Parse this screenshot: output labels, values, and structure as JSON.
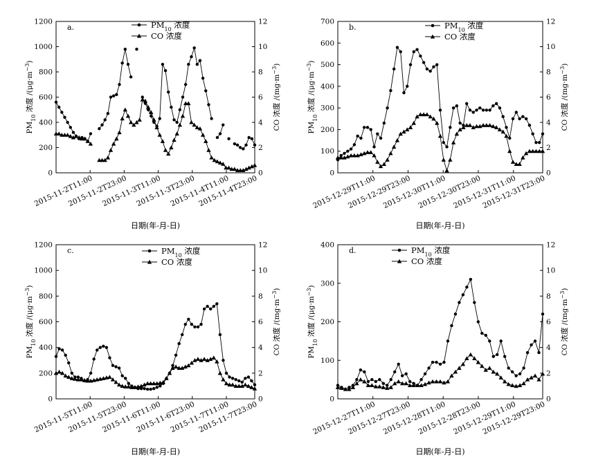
{
  "chart_data": [
    {
      "type": "line",
      "panel": "a.",
      "xlabel": "日期(年-月-日)",
      "ylabel_left": "PM10 浓度 /(μg·m−3)",
      "ylabel_right": "CO 浓度 /(mg·m−3)",
      "ylim_left": [
        0,
        1200
      ],
      "yticks_left": [
        0,
        200,
        400,
        600,
        800,
        1000,
        1200
      ],
      "ylim_right": [
        0,
        12
      ],
      "yticks_right": [
        0,
        2,
        4,
        6,
        8,
        10,
        12
      ],
      "xlim": [
        0,
        70
      ],
      "xtick_positions": [
        12,
        24,
        36,
        48,
        60,
        72
      ],
      "xtick_labels": [
        "2015-11-2T11:00",
        "2015-11-2T23:00",
        "2015-11-3T11:00",
        "2015-11-3T23:00",
        "2015-11-4T11:00",
        "2015-11-4T23:00"
      ],
      "legend": [
        "PM10 浓度",
        "CO 浓度"
      ],
      "series": [
        {
          "name": "PM10 浓度",
          "marker": "circle",
          "axis": "left",
          "values": [
            560,
            520,
            480,
            440,
            400,
            360,
            320,
            290,
            270,
            280,
            270,
            250,
            310,
            null,
            null,
            350,
            380,
            420,
            470,
            600,
            610,
            620,
            700,
            870,
            980,
            860,
            760,
            null,
            980,
            null,
            600,
            550,
            500,
            450,
            400,
            370,
            430,
            860,
            810,
            640,
            520,
            420,
            400,
            500,
            600,
            700,
            860,
            920,
            990,
            860,
            890,
            750,
            650,
            540,
            430,
            null,
            280,
            310,
            380,
            null,
            270,
            null,
            230,
            220,
            200,
            190,
            220,
            280,
            270,
            220
          ]
        },
        {
          "name": "CO 浓度",
          "marker": "triangle",
          "axis": "left",
          "values": [
            310,
            310,
            300,
            300,
            300,
            290,
            280,
            290,
            280,
            270,
            270,
            250,
            230,
            null,
            null,
            100,
            100,
            100,
            120,
            180,
            230,
            270,
            320,
            430,
            500,
            450,
            400,
            380,
            400,
            420,
            580,
            570,
            520,
            480,
            420,
            360,
            300,
            250,
            180,
            150,
            200,
            260,
            310,
            380,
            450,
            550,
            550,
            400,
            380,
            360,
            350,
            300,
            250,
            180,
            120,
            100,
            90,
            80,
            70,
            40,
            40,
            30,
            30,
            20,
            20,
            20,
            30,
            40,
            50,
            60
          ]
        }
      ]
    },
    {
      "type": "line",
      "panel": "b.",
      "xlabel": "日期(年-月-日)",
      "ylabel_left": "PM10 浓度 /(μg·m−3)",
      "ylabel_right": "CO 浓度 /(mg·m−3)",
      "ylim_left": [
        0,
        700
      ],
      "yticks_left": [
        0,
        100,
        200,
        300,
        400,
        500,
        600,
        700
      ],
      "ylim_right": [
        0,
        12
      ],
      "yticks_right": [
        0,
        2,
        4,
        6,
        8,
        10,
        12
      ],
      "xlim": [
        0,
        70
      ],
      "xtick_positions": [
        12,
        24,
        36,
        48,
        60,
        72
      ],
      "xtick_labels": [
        "2015-12-29T11:00",
        "2015-12-29T23:00",
        "2015-12-30T11:00",
        "2015-12-30T23:00",
        "2015-12-31T11:00",
        "2015-12-31T23:00"
      ],
      "legend": [
        "PM10 浓度",
        "CO 浓度"
      ],
      "series": [
        {
          "name": "PM10 浓度",
          "marker": "circle",
          "axis": "left",
          "values": [
            60,
            80,
            90,
            100,
            110,
            130,
            170,
            160,
            210,
            210,
            200,
            120,
            180,
            160,
            230,
            300,
            380,
            480,
            580,
            560,
            370,
            400,
            500,
            560,
            570,
            540,
            510,
            480,
            470,
            490,
            500,
            290,
            140,
            120,
            210,
            300,
            310,
            230,
            220,
            320,
            290,
            280,
            290,
            300,
            290,
            290,
            290,
            310,
            320,
            300,
            260,
            210,
            160,
            250,
            280,
            250,
            260,
            250,
            220,
            180,
            140,
            140,
            180
          ]
        },
        {
          "name": "CO 浓度",
          "marker": "triangle",
          "axis": "left",
          "values": [
            70,
            70,
            70,
            75,
            80,
            80,
            80,
            85,
            90,
            95,
            95,
            80,
            50,
            30,
            40,
            60,
            90,
            120,
            150,
            180,
            190,
            200,
            210,
            230,
            260,
            270,
            270,
            270,
            260,
            250,
            230,
            170,
            60,
            10,
            60,
            140,
            180,
            200,
            210,
            220,
            220,
            210,
            215,
            215,
            220,
            220,
            220,
            215,
            210,
            200,
            190,
            170,
            100,
            50,
            40,
            40,
            70,
            90,
            100,
            100,
            100,
            100,
            100
          ]
        }
      ]
    },
    {
      "type": "line",
      "panel": "c.",
      "xlabel": "日期(年-月-日)",
      "ylabel_left": "PM10 浓度 /(μg·m−3)",
      "ylabel_right": "CO 浓度 /(mg·m−3)",
      "ylim_left": [
        0,
        1200
      ],
      "yticks_left": [
        0,
        200,
        400,
        600,
        800,
        1000,
        1200
      ],
      "ylim_right": [
        0,
        12
      ],
      "yticks_right": [
        0,
        2,
        4,
        6,
        8,
        10,
        12
      ],
      "xlim": [
        0,
        70
      ],
      "xtick_positions": [
        12,
        24,
        36,
        48,
        60,
        72
      ],
      "xtick_labels": [
        "2015-11-5T11:00",
        "2015-11-5T23:00",
        "2015-11-6T11:00",
        "2015-11-6T23:00",
        "2015-11-7T11:00",
        "2015-11-7T23:00"
      ],
      "legend": [
        "PM10 浓度",
        "CO 浓度"
      ],
      "series": [
        {
          "name": "PM10 浓度",
          "marker": "circle",
          "axis": "left",
          "values": [
            330,
            390,
            380,
            340,
            280,
            200,
            170,
            170,
            160,
            140,
            150,
            200,
            310,
            380,
            400,
            410,
            400,
            320,
            260,
            250,
            240,
            180,
            160,
            120,
            100,
            90,
            80,
            80,
            80,
            75,
            75,
            80,
            90,
            100,
            120,
            160,
            200,
            260,
            340,
            430,
            500,
            580,
            620,
            580,
            560,
            560,
            580,
            700,
            720,
            700,
            720,
            740,
            500,
            300,
            200,
            170,
            160,
            150,
            140,
            130,
            160,
            170,
            140,
            110
          ]
        },
        {
          "name": "CO 浓度",
          "marker": "triangle",
          "axis": "left",
          "values": [
            200,
            210,
            200,
            180,
            170,
            160,
            155,
            150,
            150,
            145,
            140,
            140,
            145,
            150,
            155,
            160,
            165,
            170,
            150,
            130,
            110,
            100,
            95,
            95,
            90,
            90,
            95,
            100,
            110,
            120,
            120,
            120,
            120,
            125,
            130,
            160,
            200,
            240,
            250,
            240,
            240,
            250,
            260,
            280,
            300,
            310,
            300,
            310,
            300,
            310,
            320,
            290,
            200,
            150,
            120,
            110,
            110,
            100,
            100,
            100,
            110,
            100,
            90,
            80
          ]
        }
      ]
    },
    {
      "type": "line",
      "panel": "d.",
      "xlabel": "日期(年-月-日)",
      "ylabel_left": "PM10 浓度 /(μg·m−3)",
      "ylabel_right": "CO 浓度 /(mg·m−3)",
      "ylim_left": [
        0,
        400
      ],
      "yticks_left": [
        0,
        100,
        200,
        300,
        400
      ],
      "ylim_right": [
        0,
        12
      ],
      "yticks_right": [
        0,
        2,
        4,
        6,
        8,
        10,
        12
      ],
      "xlim": [
        0,
        70
      ],
      "xtick_positions": [
        12,
        24,
        36,
        48,
        60,
        72
      ],
      "xtick_labels": [
        "2015-12-27T11:00",
        "2015-12-27T23:00",
        "2015-12-28T11:00",
        "2015-12-28T23:00",
        "2015-12-29T11:00",
        "2015-12-29T23:00"
      ],
      "legend": [
        "PM10 浓度",
        "CO 浓度"
      ],
      "series": [
        {
          "name": "PM10 浓度",
          "marker": "circle",
          "axis": "left",
          "values": [
            35,
            30,
            25,
            30,
            35,
            50,
            75,
            70,
            45,
            50,
            45,
            50,
            40,
            35,
            50,
            70,
            90,
            60,
            65,
            45,
            40,
            35,
            50,
            65,
            80,
            95,
            95,
            90,
            95,
            150,
            190,
            220,
            250,
            270,
            290,
            310,
            250,
            200,
            170,
            165,
            150,
            110,
            115,
            150,
            110,
            80,
            70,
            60,
            65,
            80,
            120,
            140,
            150,
            120,
            220
          ]
        },
        {
          "name": "CO 浓度",
          "marker": "triangle",
          "axis": "left",
          "values": [
            30,
            28,
            25,
            25,
            30,
            40,
            50,
            45,
            35,
            35,
            32,
            32,
            30,
            28,
            30,
            40,
            45,
            40,
            40,
            35,
            35,
            35,
            35,
            38,
            42,
            45,
            45,
            45,
            42,
            45,
            60,
            70,
            80,
            90,
            105,
            115,
            105,
            95,
            85,
            75,
            80,
            70,
            65,
            55,
            45,
            38,
            35,
            33,
            35,
            40,
            50,
            55,
            60,
            50,
            65
          ]
        }
      ]
    }
  ]
}
